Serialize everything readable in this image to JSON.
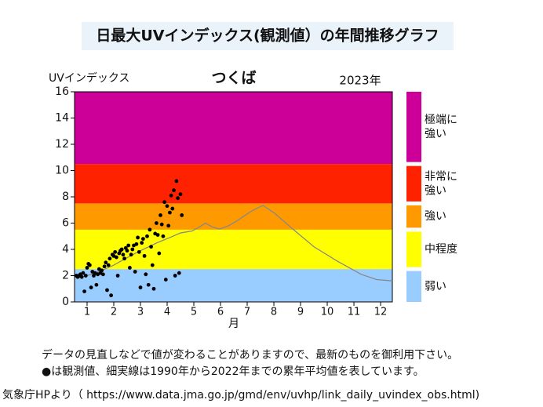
{
  "chart_data": {
    "type": "scatter",
    "title": "日最大UVインデックス(観測値）の年間推移グラフ",
    "y_label": "UVインデックス",
    "location": "つくば",
    "year": "2023年",
    "x_label": "月",
    "xlim": [
      0.53,
      12.44
    ],
    "xticks": [
      1,
      2,
      3,
      4,
      5,
      6,
      7,
      8,
      9,
      10,
      11,
      12
    ],
    "ylim": [
      0,
      16
    ],
    "yticks": [
      0,
      2,
      4,
      6,
      8,
      10,
      12,
      14,
      16
    ],
    "levels": [
      {
        "label_lines": [
          "弱い"
        ],
        "from": 0,
        "to": 2.5,
        "color": "#99ccff"
      },
      {
        "label_lines": [
          "中程度"
        ],
        "from": 2.5,
        "to": 5.5,
        "color": "#ffff00"
      },
      {
        "label_lines": [
          "強い"
        ],
        "from": 5.5,
        "to": 7.5,
        "color": "#ff9900"
      },
      {
        "label_lines": [
          "非常に",
          "強い"
        ],
        "from": 7.5,
        "to": 10.5,
        "color": "#ff2200"
      },
      {
        "label_lines": [
          "極端に",
          "強い"
        ],
        "from": 10.5,
        "to": 16,
        "color": "#cc0099"
      }
    ],
    "observed": {
      "color": "#000000",
      "x": [
        0.6,
        0.65,
        0.7,
        0.75,
        0.8,
        0.85,
        0.9,
        0.95,
        1.0,
        1.05,
        1.1,
        1.15,
        1.2,
        1.25,
        1.3,
        1.35,
        1.4,
        1.45,
        1.5,
        1.55,
        1.6,
        1.65,
        1.7,
        1.75,
        1.8,
        1.85,
        1.9,
        1.95,
        2.0,
        2.05,
        2.1,
        2.15,
        2.2,
        2.25,
        2.3,
        2.35,
        2.4,
        2.45,
        2.5,
        2.55,
        2.6,
        2.65,
        2.7,
        2.75,
        2.8,
        2.85,
        2.9,
        2.95,
        3.0,
        3.05,
        3.1,
        3.15,
        3.2,
        3.25,
        3.3,
        3.35,
        3.4,
        3.45,
        3.5,
        3.55,
        3.6,
        3.65,
        3.7,
        3.75,
        3.8,
        3.85,
        3.9,
        3.95,
        4.0,
        4.05,
        4.1,
        4.15,
        4.2,
        4.25,
        4.3,
        4.35,
        4.4,
        4.45,
        4.5,
        4.55
      ],
      "values": [
        2.0,
        1.9,
        2.0,
        2.1,
        1.9,
        2.2,
        0.8,
        2.0,
        2.6,
        2.9,
        2.8,
        1.1,
        2.3,
        2.0,
        2.2,
        1.3,
        2.1,
        2.5,
        2.2,
        2.4,
        2.1,
        2.7,
        3.0,
        0.9,
        2.8,
        3.3,
        0.5,
        3.6,
        3.5,
        3.8,
        3.4,
        2.0,
        3.7,
        3.9,
        4.0,
        3.6,
        3.3,
        4.1,
        3.9,
        4.3,
        2.6,
        3.6,
        4.0,
        4.3,
        2.3,
        4.4,
        4.9,
        3.8,
        1.1,
        4.5,
        4.8,
        3.5,
        2.1,
        5.0,
        1.3,
        5.5,
        4.2,
        2.8,
        1.0,
        5.2,
        6.0,
        5.1,
        3.7,
        6.6,
        5.9,
        5.0,
        7.6,
        1.7,
        7.3,
        5.8,
        6.8,
        8.1,
        7.1,
        8.5,
        2.0,
        9.2,
        7.9,
        2.2,
        8.2,
        6.6
      ]
    },
    "average": {
      "color": "#888888",
      "x": [
        0.59,
        1.0,
        1.56,
        2.0,
        2.44,
        3.0,
        3.62,
        4.1,
        4.5,
        4.94,
        5.2,
        5.44,
        5.7,
        5.97,
        6.3,
        6.56,
        7.15,
        7.59,
        8.03,
        8.62,
        9.5,
        10.38,
        11.27,
        11.85,
        12.44
      ],
      "values": [
        1.8,
        2.0,
        2.4,
        2.8,
        3.3,
        3.9,
        4.5,
        4.9,
        5.25,
        5.4,
        5.7,
        6.0,
        5.7,
        5.55,
        5.8,
        6.1,
        6.9,
        7.35,
        6.75,
        5.7,
        4.2,
        3.1,
        2.1,
        1.7,
        1.6
      ]
    },
    "notes": [
      "データの見直しなどで値が変わることがありますので、最新のものを御利用下さい。",
      "●は観測値、細実線は1990年から2022年までの累年平均値を表しています。"
    ],
    "source": "気象庁HPより（ https://www.data.jma.go.jp/gmd/env/uvhp/link_daily_uvindex_obs.html)"
  }
}
